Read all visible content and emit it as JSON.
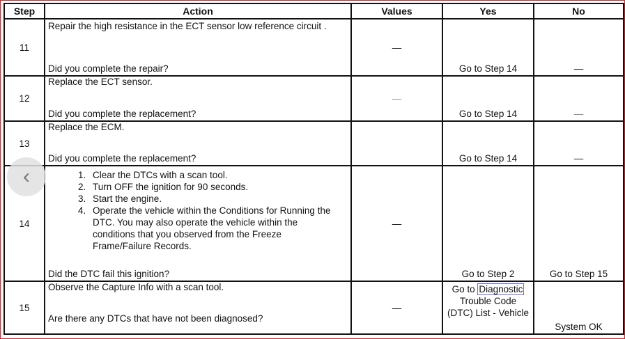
{
  "headers": [
    "Step",
    "Action",
    "Values",
    "Yes",
    "No"
  ],
  "rows": [
    {
      "step": "11",
      "action": "Repair the high resistance in the ECT sensor low reference circuit .",
      "question": "Did you complete the repair?",
      "values": "—",
      "yes": "Go to Step 14",
      "no": "—"
    },
    {
      "step": "12",
      "action": "Replace the ECT sensor.",
      "question": "Did you complete the replacement?",
      "values": "—",
      "yes": "Go to Step 14",
      "no": "—"
    },
    {
      "step": "13",
      "action": "Replace the ECM.",
      "question": "Did you complete the replacement?",
      "values": "",
      "yes": "Go to Step 14",
      "no": "—"
    },
    {
      "step": "14",
      "list": [
        "Clear the DTCs with a scan tool.",
        "Turn OFF the ignition for 90 seconds.",
        "Start the engine.",
        "Operate the vehicle within the Conditions for Running the DTC. You may also operate the vehicle within the conditions that you observed from the Freeze Frame/Failure Records."
      ],
      "question": "Did the DTC fail this ignition?",
      "values": "—",
      "yes": "Go to Step 2",
      "no": "Go to Step 15"
    },
    {
      "step": "15",
      "action": "Observe the Capture Info with a scan tool.",
      "question": "Are there any DTCs that have not been diagnosed?",
      "values": "—",
      "yes_prefix": "Go to ",
      "yes_link": "Diagnostic",
      "yes_rest": "Trouble Code (DTC) List - Vehicle",
      "no": "System OK"
    }
  ],
  "nav_icon": "chevron-left-icon"
}
